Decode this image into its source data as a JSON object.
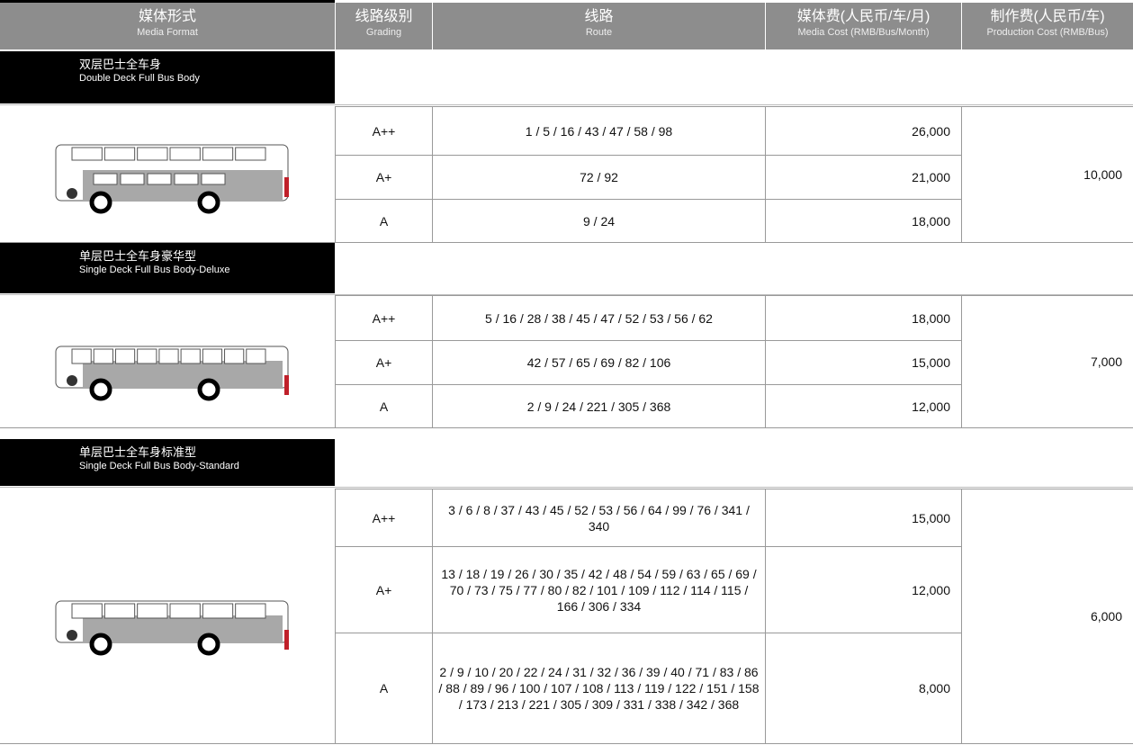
{
  "header": {
    "columns": [
      {
        "zh": "媒体形式",
        "en": "Media Format"
      },
      {
        "zh": "线路级别",
        "en": "Grading"
      },
      {
        "zh": "线路",
        "en": "Route"
      },
      {
        "zh": "媒体费(人民币/车/月)",
        "en": "Media Cost (RMB/Bus/Month)"
      },
      {
        "zh": "制作费(人民币/车)",
        "en": "Production Cost (RMB/Bus)"
      }
    ]
  },
  "sections": [
    {
      "title_zh": "双层巴士全车身",
      "title_en": "Double Deck Full Bus Body",
      "production_cost": "10,000",
      "rows": [
        {
          "grading": "A++",
          "routes": "1 / 5 / 16 / 43 / 47 / 58 / 98",
          "media_cost": "26,000"
        },
        {
          "grading": "A+",
          "routes": "72 / 92",
          "media_cost": "21,000"
        },
        {
          "grading": "A",
          "routes": "9 / 24",
          "media_cost": "18,000"
        }
      ]
    },
    {
      "title_zh": "单层巴士全车身豪华型",
      "title_en": "Single Deck Full Bus Body-Deluxe",
      "production_cost": "7,000",
      "rows": [
        {
          "grading": "A++",
          "routes": "5 / 16 / 28 / 38 / 45 / 47 / 52 / 53 / 56 / 62",
          "media_cost": "18,000"
        },
        {
          "grading": "A+",
          "routes": "42 / 57 / 65 / 69 / 82 / 106",
          "media_cost": "15,000"
        },
        {
          "grading": "A",
          "routes": "2 / 9 / 24 / 221 / 305 / 368",
          "media_cost": "12,000"
        }
      ]
    },
    {
      "title_zh": "单层巴士全车身标准型",
      "title_en": "Single Deck Full Bus Body-Standard",
      "production_cost": "6,000",
      "rows": [
        {
          "grading": "A++",
          "routes": "3  / 6 / 8 / 37 / 43 / 45 / 52 / 53 / 56 / 64 / 99 / 76 / 341 / 340",
          "media_cost": "15,000"
        },
        {
          "grading": "A+",
          "routes": "13 / 18  / 19 / 26 / 30 / 35 / 42 / 48 / 54 / 59 / 63 / 65 / 69 / 70 / 73 / 75 / 77 / 80 / 82 / 101 / 109 / 112 / 114 / 115 / 166 /  306 / 334",
          "media_cost": "12,000"
        },
        {
          "grading": "A",
          "routes": "2 / 9 / 10 / 20 / 22 / 24 / 31 / 32 / 36 / 39 / 40 / 71 / 83 / 86 / 88 / 89 / 96 / 100 / 107 / 108 / 113 / 119 / 122 / 151 / 158 / 173 / 213 / 221 / 305 / 309 / 331 / 338 / 342 / 368",
          "media_cost": "8,000"
        }
      ]
    }
  ]
}
